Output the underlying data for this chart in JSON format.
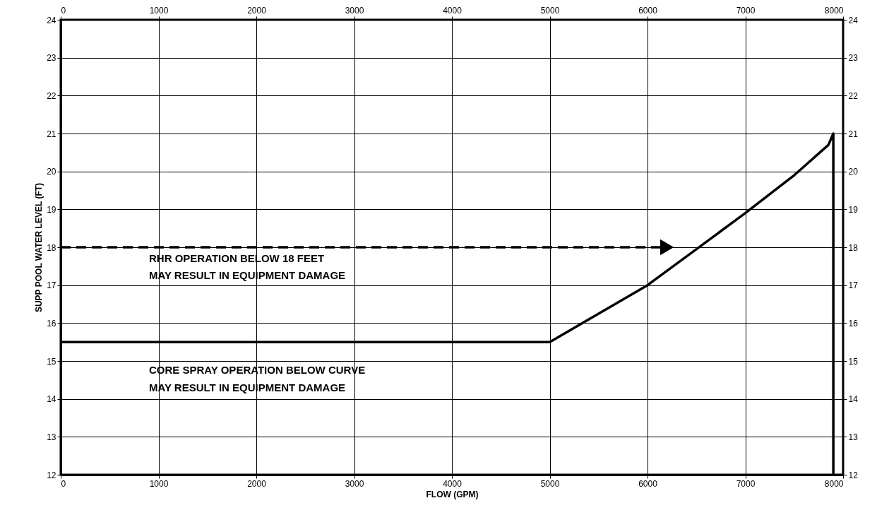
{
  "chart_data": {
    "type": "line",
    "xlabel": "FLOW (GPM)",
    "ylabel": "SUPP POOL WATER LEVEL (FT)",
    "xlim": [
      0,
      8000
    ],
    "xticks": [
      0,
      1000,
      2000,
      3000,
      4000,
      5000,
      6000,
      7000,
      8000
    ],
    "x2lim": [
      0,
      8000
    ],
    "x2ticks": [
      0,
      1000,
      2000,
      3000,
      4000,
      5000,
      6000,
      7000,
      8000
    ],
    "ylim": [
      12,
      24
    ],
    "yticks": [
      12,
      13,
      14,
      15,
      16,
      17,
      18,
      19,
      20,
      21,
      22,
      23,
      24
    ],
    "y2lim": [
      12,
      24
    ],
    "y2ticks": [
      12,
      13,
      14,
      15,
      16,
      17,
      18,
      19,
      20,
      21,
      22,
      23,
      24
    ],
    "grid": true,
    "series": [
      {
        "color": "#000000",
        "x": [
          0,
          5000,
          6000,
          7000,
          7500,
          7850,
          7900,
          7900
        ],
        "values": [
          15.5,
          15.5,
          17,
          18.9,
          19.9,
          20.7,
          21,
          12
        ],
        "line_style": "solid",
        "marker": "none"
      },
      {
        "color": "#000000",
        "x": [
          0,
          6200
        ],
        "values": [
          18,
          18
        ],
        "line_style": "dashed",
        "marker": "triangle"
      }
    ],
    "annotations": [
      "RHR OPERATION BELOW 18 FEET",
      "MAY RESULT IN EQUIPMENT DAMAGE",
      "CORE SPRAY OPERATION BELOW CURVE",
      "MAY RESULT IN EQUIPMENT DAMAGE"
    ]
  }
}
